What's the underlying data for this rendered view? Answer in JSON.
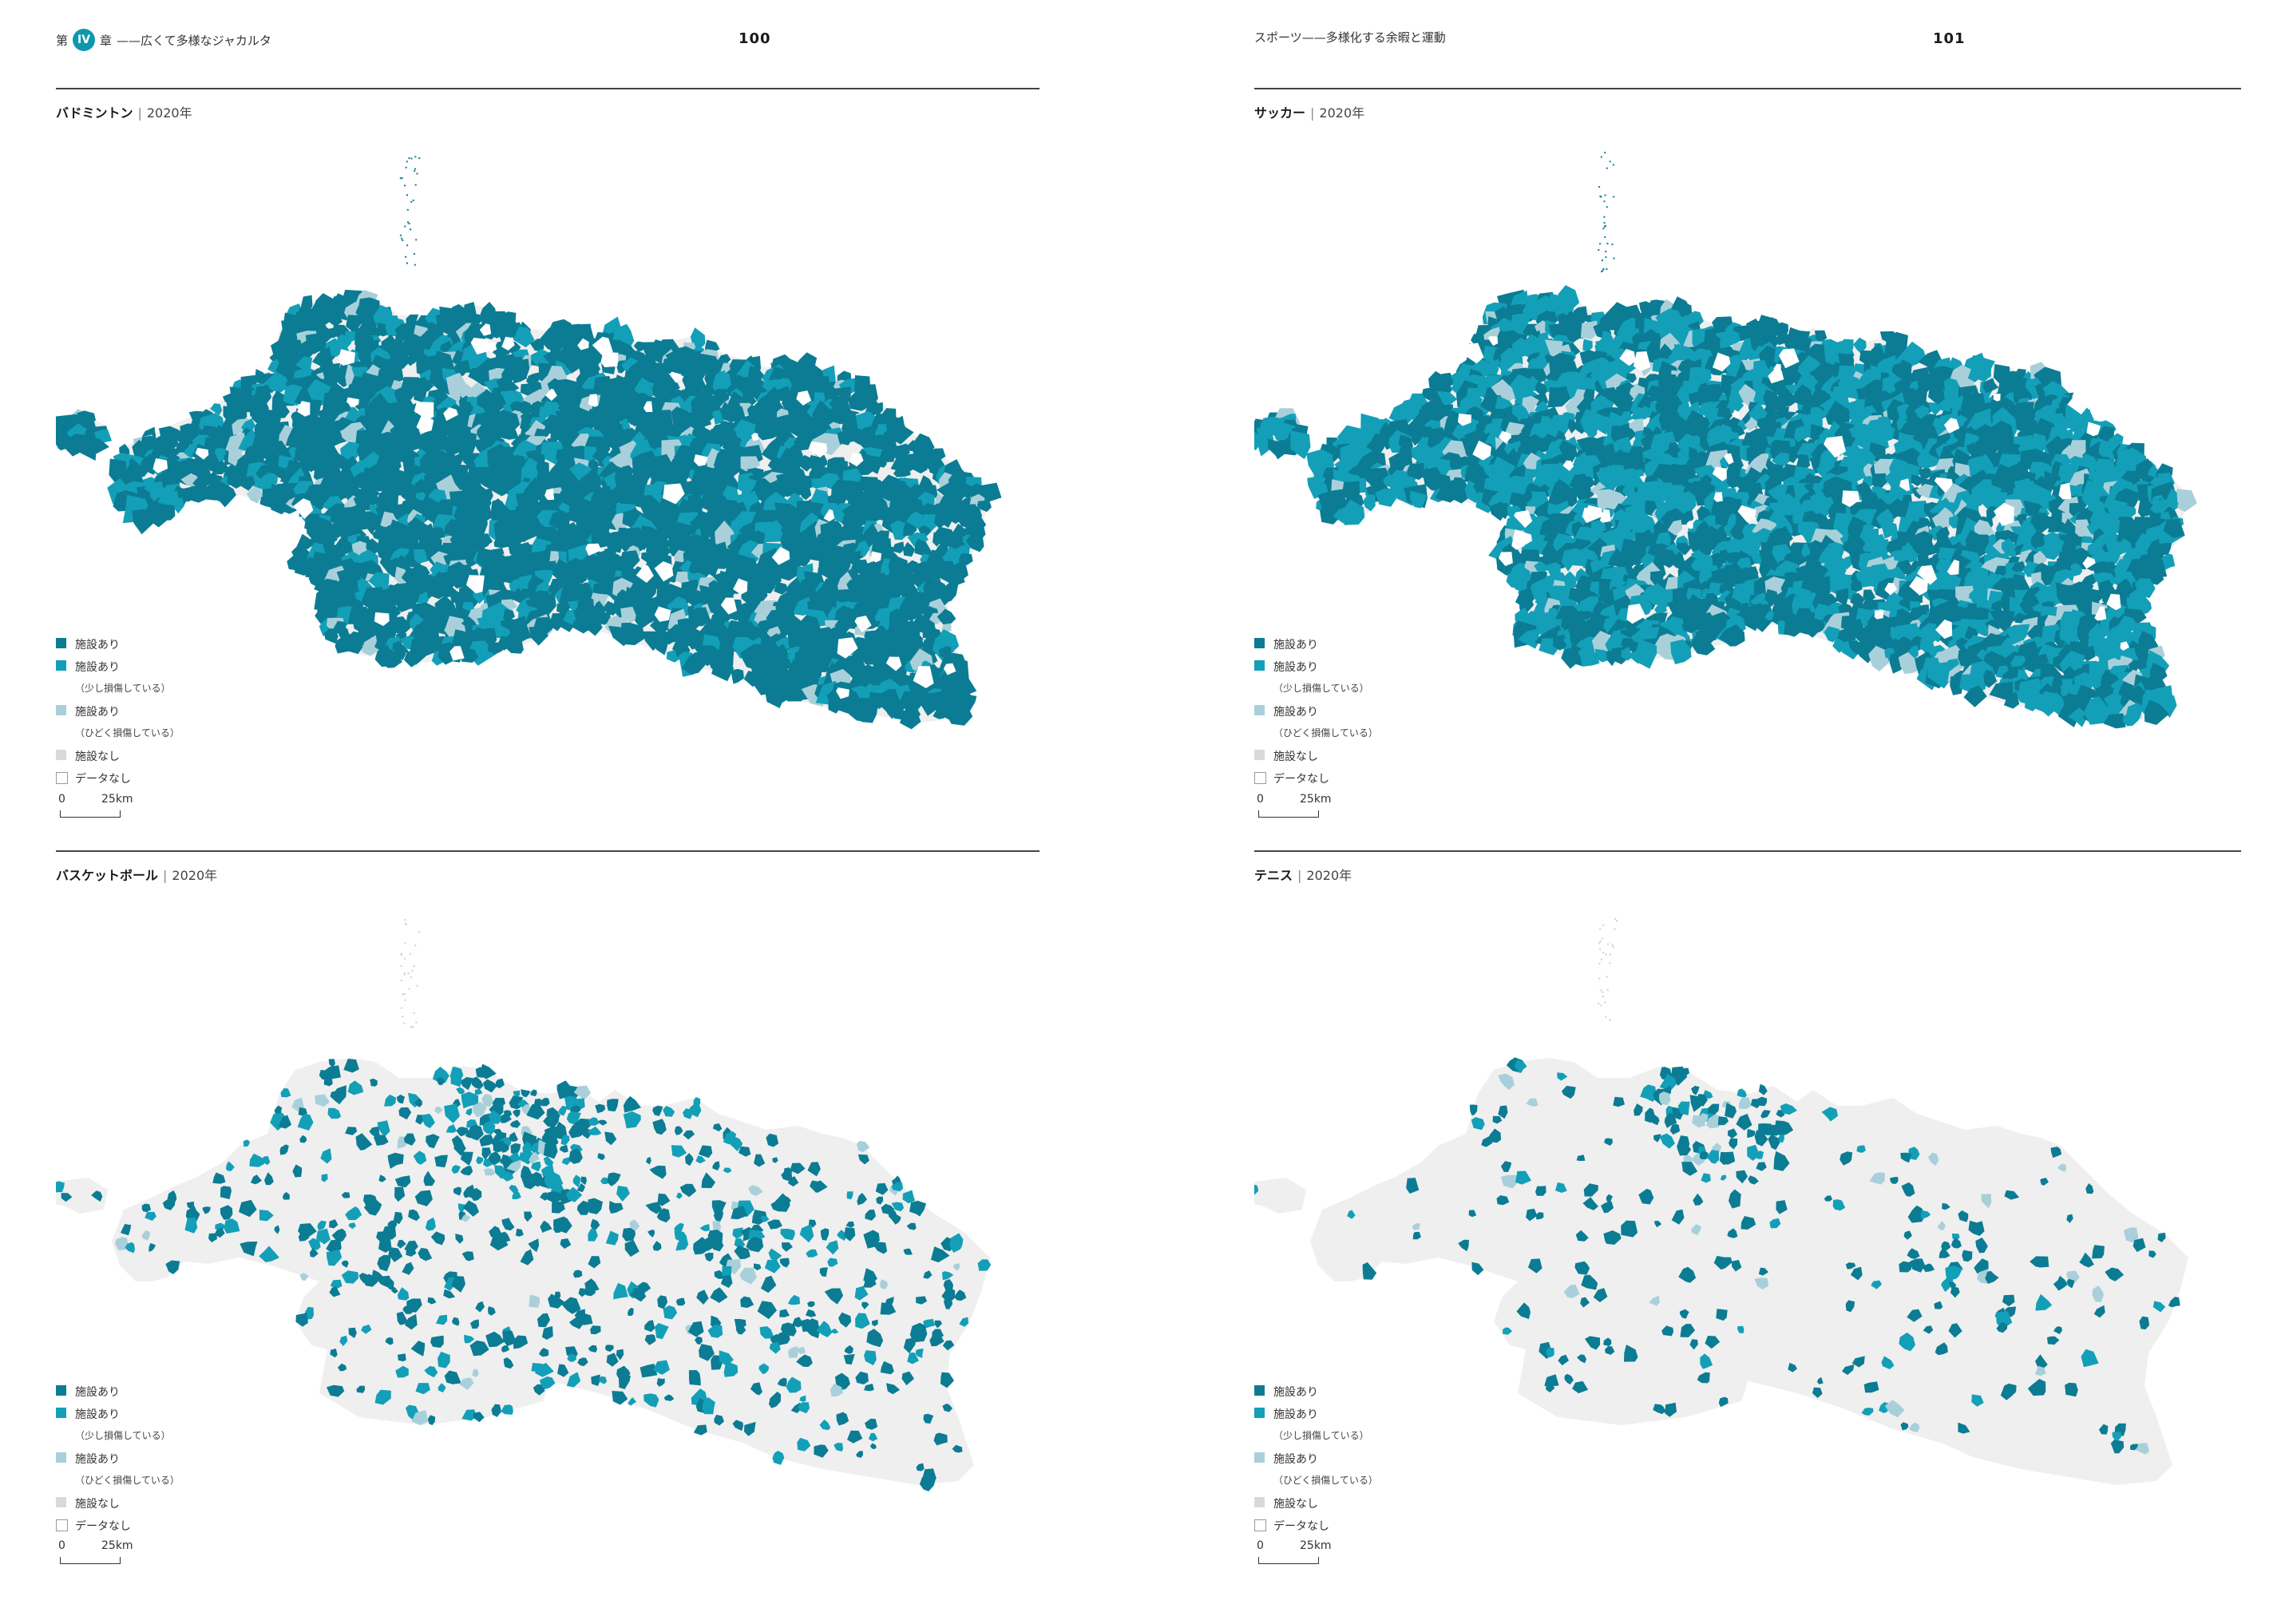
{
  "colors": {
    "has_facility": "#0b7c93",
    "slightly_damaged": "#139fb8",
    "heavily_damaged": "#a9d0da",
    "no_facility": "#d9d9d9",
    "no_data": "#ffffff",
    "base_land": "#efefef",
    "badge": "#0f97ad"
  },
  "left_page": {
    "chapter_prefix": "第",
    "chapter_numeral": "IV",
    "chapter_suffix": "章",
    "running_title": "——広くて多様なジャカルタ",
    "page_number": "100"
  },
  "right_page": {
    "running_title": "スポーツ——多様化する余暇と運動",
    "page_number": "101"
  },
  "year_label": "2020年",
  "maps": [
    {
      "id": "badminton",
      "sport": "バドミントン",
      "coverage": "dense_dark"
    },
    {
      "id": "soccer",
      "sport": "サッカー",
      "coverage": "dense_bright"
    },
    {
      "id": "basketball",
      "sport": "バスケットボール",
      "coverage": "sparse"
    },
    {
      "id": "tennis",
      "sport": "テニス",
      "coverage": "very_sparse"
    }
  ],
  "legend": {
    "items": [
      {
        "label": "施設あり",
        "sub": ""
      },
      {
        "label": "施設あり",
        "sub": "（少し損傷している）"
      },
      {
        "label": "施設あり",
        "sub": "（ひどく損傷している）"
      },
      {
        "label": "施設なし",
        "sub": ""
      },
      {
        "label": "データなし",
        "sub": ""
      }
    ]
  },
  "scale": {
    "zero": "0",
    "distance": "25km"
  }
}
